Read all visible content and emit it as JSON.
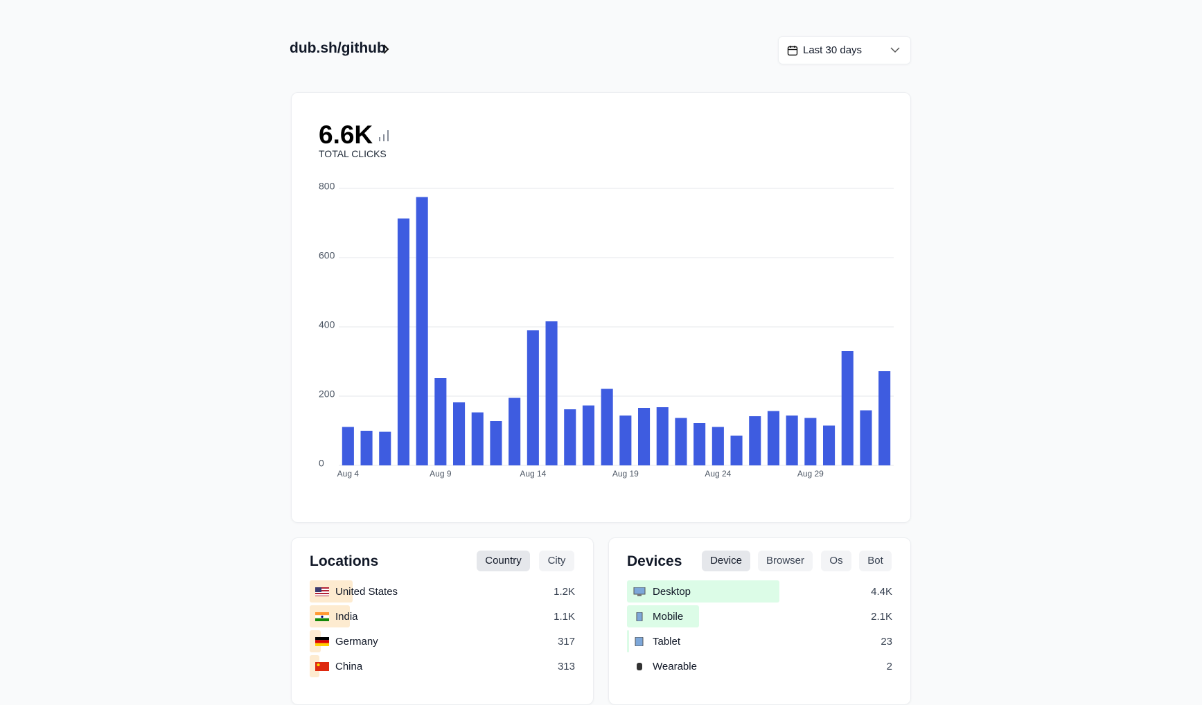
{
  "header": {
    "title": "dub.sh/github",
    "date_range": "Last 30 days"
  },
  "chart_data": {
    "type": "bar",
    "title": "6.6K",
    "subtitle": "TOTAL CLICKS",
    "categories": [
      "Aug 4",
      null,
      null,
      null,
      null,
      "Aug 9",
      null,
      null,
      null,
      null,
      "Aug 14",
      null,
      null,
      null,
      null,
      "Aug 19",
      null,
      null,
      null,
      null,
      "Aug 24",
      null,
      null,
      null,
      null,
      "Aug 29",
      null,
      null,
      null,
      null
    ],
    "values": [
      111,
      100,
      97,
      713,
      775,
      252,
      182,
      153,
      128,
      195,
      390,
      416,
      162,
      173,
      221,
      144,
      166,
      168,
      137,
      122,
      111,
      86,
      142,
      157,
      144,
      137,
      115,
      330,
      159,
      272
    ],
    "color": "#3e5ce0",
    "ylim": [
      0,
      800
    ],
    "yticks": [
      0,
      200,
      400,
      600,
      800
    ],
    "grid": true
  },
  "locations": {
    "title": "Locations",
    "tabs": [
      "Country",
      "City"
    ],
    "rows": [
      {
        "label": "United States",
        "value": "1.2K"
      },
      {
        "label": "India",
        "value": "1.1K"
      },
      {
        "label": "Germany",
        "value": "317"
      },
      {
        "label": "China",
        "value": "313"
      }
    ]
  },
  "devices": {
    "title": "Devices",
    "tabs": [
      "Device",
      "Browser",
      "Os",
      "Bot"
    ],
    "rows": [
      {
        "label": "Desktop",
        "value": "4.4K"
      },
      {
        "label": "Mobile",
        "value": "2.1K"
      },
      {
        "label": "Tablet",
        "value": "23"
      },
      {
        "label": "Wearable",
        "value": "2"
      }
    ]
  }
}
